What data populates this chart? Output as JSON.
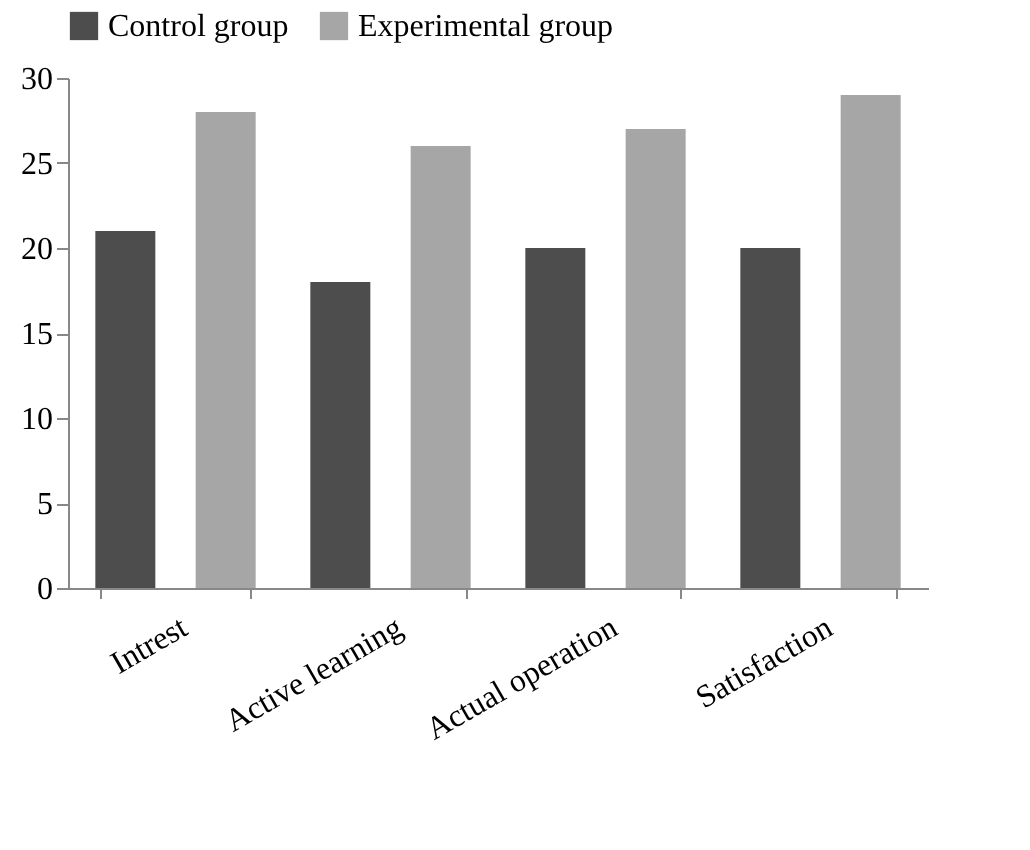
{
  "chart_data": {
    "type": "bar",
    "categories": [
      "Intrest",
      "Active learning",
      "Actual operation",
      "Satisfaction"
    ],
    "series": [
      {
        "name": "Control group",
        "color": "#4d4d4d",
        "values": [
          21,
          18,
          20,
          20
        ]
      },
      {
        "name": "Experimental group",
        "color": "#a6a6a6",
        "values": [
          28,
          26,
          27,
          29
        ]
      }
    ],
    "ylim": [
      0,
      30
    ],
    "yticks": [
      0,
      5,
      10,
      15,
      20,
      25,
      30
    ],
    "grid": false,
    "legend": "top"
  }
}
